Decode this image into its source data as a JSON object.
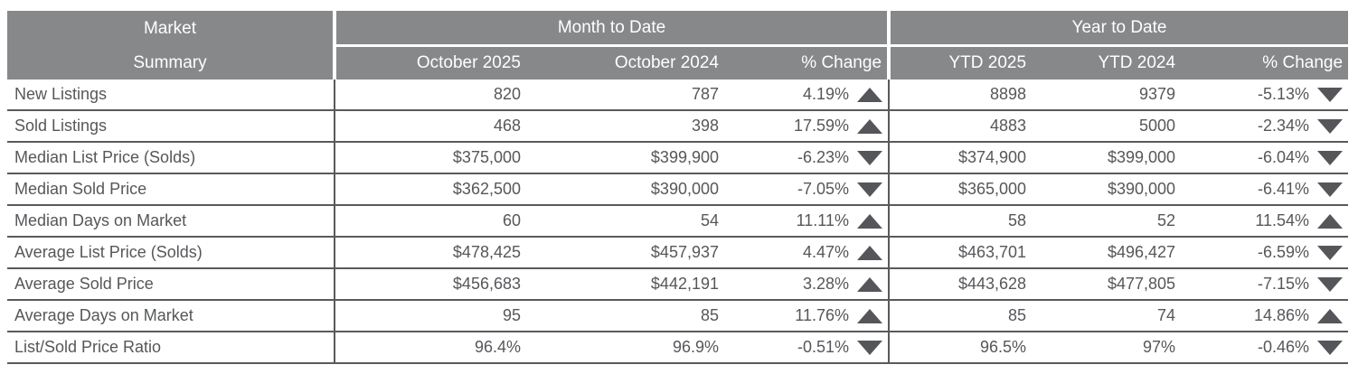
{
  "header": {
    "market_line1": "Market",
    "market_line2": "Summary",
    "month_to_date": "Month to Date",
    "year_to_date": "Year to Date",
    "col_mtd_2025": "October 2025",
    "col_mtd_2024": "October 2024",
    "col_mtd_change": "% Change",
    "col_ytd_2025": "YTD 2025",
    "col_ytd_2024": "YTD 2024",
    "col_ytd_change": "% Change"
  },
  "colors": {
    "header_bg": "#87888a",
    "body_text": "#55575a",
    "grid_line": "#595a5c",
    "triangle": "#55565a"
  },
  "chart_data": {
    "type": "table",
    "title": "Market Summary",
    "column_groups": [
      "Month to Date",
      "Year to Date"
    ],
    "columns": [
      "Market Summary",
      "October 2025",
      "October 2024",
      "% Change",
      "YTD 2025",
      "YTD 2024",
      "% Change"
    ],
    "rows": [
      {
        "label": "New Listings",
        "mtd_2025": "820",
        "mtd_2024": "787",
        "mtd_change": "4.19%",
        "mtd_dir": "up",
        "ytd_2025": "8898",
        "ytd_2024": "9379",
        "ytd_change": "-5.13%",
        "ytd_dir": "down"
      },
      {
        "label": "Sold Listings",
        "mtd_2025": "468",
        "mtd_2024": "398",
        "mtd_change": "17.59%",
        "mtd_dir": "up",
        "ytd_2025": "4883",
        "ytd_2024": "5000",
        "ytd_change": "-2.34%",
        "ytd_dir": "down"
      },
      {
        "label": "Median List Price (Solds)",
        "mtd_2025": "$375,000",
        "mtd_2024": "$399,900",
        "mtd_change": "-6.23%",
        "mtd_dir": "down",
        "ytd_2025": "$374,900",
        "ytd_2024": "$399,000",
        "ytd_change": "-6.04%",
        "ytd_dir": "down"
      },
      {
        "label": "Median Sold Price",
        "mtd_2025": "$362,500",
        "mtd_2024": "$390,000",
        "mtd_change": "-7.05%",
        "mtd_dir": "down",
        "ytd_2025": "$365,000",
        "ytd_2024": "$390,000",
        "ytd_change": "-6.41%",
        "ytd_dir": "down"
      },
      {
        "label": "Median Days on Market",
        "mtd_2025": "60",
        "mtd_2024": "54",
        "mtd_change": "11.11%",
        "mtd_dir": "up",
        "ytd_2025": "58",
        "ytd_2024": "52",
        "ytd_change": "11.54%",
        "ytd_dir": "up"
      },
      {
        "label": "Average List Price (Solds)",
        "mtd_2025": "$478,425",
        "mtd_2024": "$457,937",
        "mtd_change": "4.47%",
        "mtd_dir": "up",
        "ytd_2025": "$463,701",
        "ytd_2024": "$496,427",
        "ytd_change": "-6.59%",
        "ytd_dir": "down"
      },
      {
        "label": "Average Sold Price",
        "mtd_2025": "$456,683",
        "mtd_2024": "$442,191",
        "mtd_change": "3.28%",
        "mtd_dir": "up",
        "ytd_2025": "$443,628",
        "ytd_2024": "$477,805",
        "ytd_change": "-7.15%",
        "ytd_dir": "down"
      },
      {
        "label": "Average Days on Market",
        "mtd_2025": "95",
        "mtd_2024": "85",
        "mtd_change": "11.76%",
        "mtd_dir": "up",
        "ytd_2025": "85",
        "ytd_2024": "74",
        "ytd_change": "14.86%",
        "ytd_dir": "up"
      },
      {
        "label": "List/Sold Price Ratio",
        "mtd_2025": "96.4%",
        "mtd_2024": "96.9%",
        "mtd_change": "-0.51%",
        "mtd_dir": "down",
        "ytd_2025": "96.5%",
        "ytd_2024": "97%",
        "ytd_change": "-0.46%",
        "ytd_dir": "down"
      }
    ]
  }
}
